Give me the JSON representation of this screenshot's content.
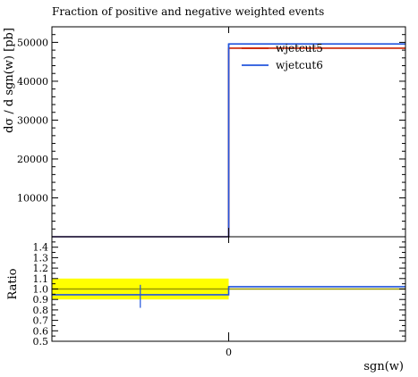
{
  "chart_data": [
    {
      "type": "line",
      "panel": "main",
      "title": "Fraction of positive and negative weighted events",
      "ylabel": "dσ / d sgn(w) [pb]",
      "ylim": [
        0,
        54000
      ],
      "yticks": [
        10000,
        20000,
        30000,
        40000,
        50000
      ],
      "ytick_labels": [
        "10000",
        "20000",
        "30000",
        "40000",
        "50000"
      ],
      "x_range": [
        -1,
        1
      ],
      "x_edges": [
        -1,
        0,
        1
      ],
      "series": [
        {
          "name": "wjetcut5",
          "color": "#cc2200",
          "values": [
            0,
            48500
          ]
        },
        {
          "name": "wjetcut6",
          "color": "#2255dd",
          "values": [
            0,
            49600
          ]
        }
      ],
      "legend_placement": "top-right"
    },
    {
      "type": "line",
      "panel": "ratio",
      "ylabel": "Ratio",
      "xlabel": "sgn(w)",
      "ylim": [
        0.5,
        1.5
      ],
      "yticks": [
        0.5,
        0.6,
        0.7,
        0.8,
        0.9,
        1.0,
        1.1,
        1.2,
        1.3,
        1.4
      ],
      "ytick_labels": [
        "0.5",
        "0.6",
        "0.7",
        "0.8",
        "0.9",
        "1.0",
        "1.1",
        "1.2",
        "1.3",
        "1.4"
      ],
      "xticks": [
        0
      ],
      "xtick_labels": [
        "0"
      ],
      "x_edges": [
        -1,
        0,
        1
      ],
      "band": {
        "color": "#ffff00",
        "bins": [
          [
            0.9,
            1.1
          ],
          null
        ]
      },
      "series": [
        {
          "name": "wjetcut5",
          "color": "#999900",
          "values": [
            1.0,
            1.0
          ]
        },
        {
          "name": "wjetcut6",
          "color": "#2255dd",
          "values": [
            0.945,
            1.022
          ],
          "errors": [
            [
              0.82,
              1.04
            ],
            null
          ]
        }
      ]
    }
  ]
}
